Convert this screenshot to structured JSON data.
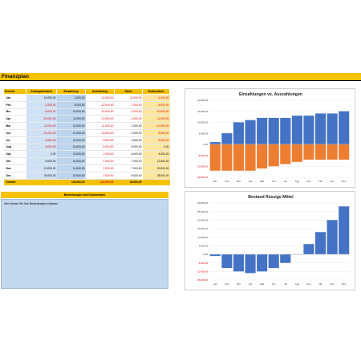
{
  "sheet": {
    "title": "Finanzplan",
    "table": {
      "headers": [
        "Periode",
        "Anfangsbestand",
        "Einzahlung",
        "Auszahlung",
        "Saldo",
        "Endbestand"
      ],
      "rows": [
        [
          "Jan",
          "10.000,00",
          "1.000,00",
          "-12.000,00",
          "-11.000,00",
          "-1.000,00"
        ],
        [
          "Feb",
          "-1.000,00",
          "5.000,00",
          "-12.000,00",
          "-7.000,00",
          "-8.000,00"
        ],
        [
          "Mrz",
          "-8.000,00",
          "10.000,00",
          "-12.000,00",
          "-2.000,00",
          "-10.000,00"
        ],
        [
          "Apr",
          "-10.000,00",
          "11.000,00",
          "-12.000,00",
          "-1.000,00",
          "-11.000,00"
        ],
        [
          "Mai",
          "-11.000,00",
          "12.000,00",
          "-11.000,00",
          "1.000,00",
          "-10.000,00"
        ],
        [
          "Jun",
          "-10.000,00",
          "12.000,00",
          "-10.000,00",
          "2.000,00",
          "-8.000,00"
        ],
        [
          "Jul",
          "-8.000,00",
          "12.000,00",
          "-9.000,00",
          "3.000,00",
          "-5.000,00"
        ],
        [
          "Aug",
          "-5.000,00",
          "13.000,00",
          "-8.000,00",
          "5.000,00",
          "0,00"
        ],
        [
          "Sep",
          "0,00",
          "13.000,00",
          "-7.000,00",
          "6.000,00",
          "6.000,00"
        ],
        [
          "Okt",
          "6.000,00",
          "14.000,00",
          "-7.000,00",
          "7.000,00",
          "13.000,00"
        ],
        [
          "Nov",
          "13.000,00",
          "14.000,00",
          "-7.000,00",
          "7.000,00",
          "20.000,00"
        ],
        [
          "Dez",
          "20.000,00",
          "15.000,00",
          "-7.000,00",
          "8.000,00",
          "28.000,00"
        ]
      ],
      "sum_label": "Summe",
      "sum_einzahlung": "132.000,00",
      "sum_auszahlung": "-114.000,00",
      "sum_saldo": "18.000,00"
    },
    "comments": {
      "header": "Bemerkungen und Kommentare",
      "text": "Hier können Sie Ihre Bemerkungen erfassen."
    }
  },
  "colors": {
    "accent_yellow": "#f5c100",
    "light_blue": "#c3d8ee",
    "bar_blue": "#4472c4",
    "bar_orange": "#ed7d31",
    "negative_red": "#e00000"
  },
  "chart_data": [
    {
      "type": "bar",
      "title": "Einzahlungen vs. Auszahlungen",
      "categories": [
        "Jan",
        "Feb",
        "Mrz",
        "Apr",
        "Mai",
        "Jun",
        "Jul",
        "Aug",
        "Sep",
        "Okt",
        "Nov",
        "Dez"
      ],
      "series": [
        {
          "values": [
            1000,
            5000,
            10000,
            11000,
            12000,
            12000,
            12000,
            13000,
            13000,
            14000,
            14000,
            15000
          ],
          "color": "#4472c4"
        },
        {
          "values": [
            -12000,
            -12000,
            -12000,
            -12000,
            -11000,
            -10000,
            -9000,
            -8000,
            -7000,
            -7000,
            -7000,
            -7000
          ],
          "color": "#ed7d31"
        }
      ],
      "yticks": [
        20000,
        15000,
        10000,
        5000,
        0,
        -5000,
        -10000,
        -15000
      ],
      "ytick_labels": [
        "20.000,00",
        "15.000,00",
        "10.000,00",
        "5.000,00",
        "0,00",
        "-5.000,00",
        "-10.000,00",
        "-15.000,00"
      ],
      "ylim": [
        -15000,
        20000
      ],
      "stacked": true
    },
    {
      "type": "bar",
      "title": "Bestand flüssige Mittel",
      "categories": [
        "Jan",
        "Feb",
        "Mrz",
        "Apr",
        "Mai",
        "Jun",
        "Jul",
        "Aug",
        "Sep",
        "Okt",
        "Nov",
        "Dez"
      ],
      "series": [
        {
          "values": [
            -1000,
            -8000,
            -10000,
            -11000,
            -10000,
            -8000,
            -5000,
            0,
            6000,
            13000,
            20000,
            28000
          ],
          "color": "#4472c4"
        }
      ],
      "yticks": [
        30000,
        25000,
        20000,
        15000,
        10000,
        5000,
        0,
        -5000,
        -10000,
        -15000
      ],
      "ytick_labels": [
        "30.000,00",
        "25.000,00",
        "20.000,00",
        "15.000,00",
        "10.000,00",
        "5.000,00",
        "0,00",
        "-5.000,00",
        "-10.000,00",
        "-15.000,00"
      ],
      "ylim": [
        -15000,
        30000
      ]
    }
  ]
}
